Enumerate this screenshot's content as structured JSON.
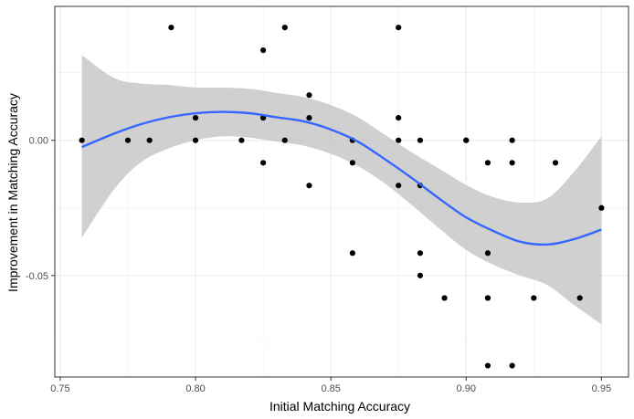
{
  "chart_data": {
    "type": "scatter",
    "title": "",
    "xlabel": "Initial Matching Accuracy",
    "ylabel": "Improvement in Matching Accuracy",
    "xlim": [
      0.748,
      0.96
    ],
    "ylim": [
      -0.0875,
      0.0495
    ],
    "x_ticks": [
      0.75,
      0.8,
      0.85,
      0.9,
      0.95
    ],
    "x_tick_labels": [
      "0.75",
      "0.80",
      "0.85",
      "0.90",
      "0.95"
    ],
    "y_ticks": [
      -0.05,
      0.0
    ],
    "y_tick_labels": [
      "-0.05",
      "0.00"
    ],
    "grid": true,
    "colors": {
      "points": "#000000",
      "smooth_line": "#3366FF",
      "ribbon": "#BEBEBE",
      "grid_major": "#EBEBEB",
      "grid_minor": "#F2F2F2",
      "panel_border": "#333333"
    },
    "points": [
      {
        "x": 0.758,
        "y": 0.0
      },
      {
        "x": 0.775,
        "y": 0.0
      },
      {
        "x": 0.783,
        "y": 0.0
      },
      {
        "x": 0.791,
        "y": 0.0417
      },
      {
        "x": 0.8,
        "y": 0.0083
      },
      {
        "x": 0.8,
        "y": 0.0
      },
      {
        "x": 0.817,
        "y": 0.0
      },
      {
        "x": 0.825,
        "y": 0.0333
      },
      {
        "x": 0.825,
        "y": 0.0083
      },
      {
        "x": 0.825,
        "y": -0.0083
      },
      {
        "x": 0.833,
        "y": 0.0417
      },
      {
        "x": 0.833,
        "y": 0.0
      },
      {
        "x": 0.842,
        "y": 0.0167
      },
      {
        "x": 0.842,
        "y": 0.0083
      },
      {
        "x": 0.842,
        "y": -0.0167
      },
      {
        "x": 0.858,
        "y": 0.0
      },
      {
        "x": 0.858,
        "y": -0.0083
      },
      {
        "x": 0.858,
        "y": -0.0417
      },
      {
        "x": 0.875,
        "y": 0.0417
      },
      {
        "x": 0.875,
        "y": 0.0083
      },
      {
        "x": 0.875,
        "y": 0.0
      },
      {
        "x": 0.875,
        "y": -0.0167
      },
      {
        "x": 0.883,
        "y": 0.0
      },
      {
        "x": 0.883,
        "y": -0.0167
      },
      {
        "x": 0.883,
        "y": -0.0417
      },
      {
        "x": 0.883,
        "y": -0.05
      },
      {
        "x": 0.892,
        "y": -0.0583
      },
      {
        "x": 0.9,
        "y": 0.0
      },
      {
        "x": 0.9,
        "y": 0.0
      },
      {
        "x": 0.908,
        "y": -0.0083
      },
      {
        "x": 0.908,
        "y": -0.0417
      },
      {
        "x": 0.908,
        "y": -0.0583
      },
      {
        "x": 0.908,
        "y": -0.0583
      },
      {
        "x": 0.908,
        "y": -0.0833
      },
      {
        "x": 0.917,
        "y": 0.0
      },
      {
        "x": 0.917,
        "y": -0.0083
      },
      {
        "x": 0.917,
        "y": -0.0833
      },
      {
        "x": 0.925,
        "y": -0.0583
      },
      {
        "x": 0.933,
        "y": -0.0083
      },
      {
        "x": 0.942,
        "y": -0.0583
      },
      {
        "x": 0.95,
        "y": -0.025
      }
    ],
    "smooth": [
      {
        "x": 0.758,
        "y": -0.0025,
        "lo": -0.036,
        "hi": 0.0315
      },
      {
        "x": 0.77,
        "y": 0.0025,
        "lo": -0.018,
        "hi": 0.023
      },
      {
        "x": 0.78,
        "y": 0.006,
        "lo": -0.008,
        "hi": 0.021
      },
      {
        "x": 0.79,
        "y": 0.0085,
        "lo": -0.003,
        "hi": 0.0205
      },
      {
        "x": 0.8,
        "y": 0.01,
        "lo": 0.0,
        "hi": 0.0195
      },
      {
        "x": 0.81,
        "y": 0.0105,
        "lo": 0.0015,
        "hi": 0.0195
      },
      {
        "x": 0.82,
        "y": 0.01,
        "lo": 0.001,
        "hi": 0.019
      },
      {
        "x": 0.83,
        "y": 0.0085,
        "lo": -0.0005,
        "hi": 0.0175
      },
      {
        "x": 0.84,
        "y": 0.007,
        "lo": -0.002,
        "hi": 0.016
      },
      {
        "x": 0.85,
        "y": 0.004,
        "lo": -0.005,
        "hi": 0.013
      },
      {
        "x": 0.86,
        "y": -0.0005,
        "lo": -0.0095,
        "hi": 0.0085
      },
      {
        "x": 0.87,
        "y": -0.007,
        "lo": -0.016,
        "hi": 0.002
      },
      {
        "x": 0.88,
        "y": -0.014,
        "lo": -0.024,
        "hi": -0.0045
      },
      {
        "x": 0.89,
        "y": -0.0215,
        "lo": -0.0325,
        "hi": -0.0105
      },
      {
        "x": 0.9,
        "y": -0.0285,
        "lo": -0.0405,
        "hi": -0.0165
      },
      {
        "x": 0.91,
        "y": -0.0335,
        "lo": -0.046,
        "hi": -0.021
      },
      {
        "x": 0.92,
        "y": -0.0375,
        "lo": -0.05,
        "hi": -0.023
      },
      {
        "x": 0.93,
        "y": -0.0385,
        "lo": -0.0535,
        "hi": -0.0215
      },
      {
        "x": 0.94,
        "y": -0.0365,
        "lo": -0.061,
        "hi": -0.0115
      },
      {
        "x": 0.95,
        "y": -0.033,
        "lo": -0.068,
        "hi": 0.0015
      }
    ]
  }
}
